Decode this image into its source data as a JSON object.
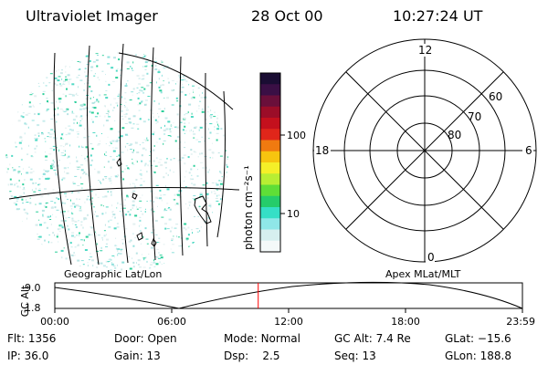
{
  "header": {
    "instrument": "Ultraviolet Imager",
    "date": "28 Oct 00",
    "time": "10:27:24 UT"
  },
  "colorbar": {
    "unit_label": "photon cm⁻²s⁻¹",
    "tick_labels": [
      "100",
      "10"
    ],
    "colors_top_to_bottom": [
      "#1a0d33",
      "#3a0f45",
      "#6a0f3a",
      "#9b0d28",
      "#c4101d",
      "#e0261a",
      "#f07a10",
      "#f7c40f",
      "#f5ef28",
      "#b8ee33",
      "#5fde37",
      "#25cc6a",
      "#35dfc6",
      "#8fe7e8",
      "#d6efef",
      "#f4f9f9"
    ]
  },
  "polar_grid": {
    "mlt_labels": {
      "top": "12",
      "left": "18",
      "right": "6",
      "bottom": "0"
    },
    "mlat_labels": [
      "60",
      "70",
      "80"
    ]
  },
  "timeline": {
    "ylabel": "GC Alt",
    "yticks": [
      "9.0",
      "1.8"
    ],
    "left_caption": "Geographic Lat/Lon",
    "right_caption": "Apex MLat/MLT",
    "xticks": [
      "00:00",
      "06:00",
      "12:00",
      "18:00",
      "23:59"
    ],
    "current_time_fraction": 0.435,
    "marker_color": "#ff0000"
  },
  "info": {
    "row1": [
      {
        "label": "Flt:",
        "value": "1356"
      },
      {
        "label": "Door:",
        "value": "Open"
      },
      {
        "label": "Mode:",
        "value": "Normal"
      },
      {
        "label": "GC Alt:",
        "value": "7.4 Re"
      },
      {
        "label": "GLat:",
        "value": "−15.6"
      }
    ],
    "row2": [
      {
        "label": "IP:",
        "value": "36.0"
      },
      {
        "label": "Gain:",
        "value": "13"
      },
      {
        "label": "Dsp:",
        "value": "2.5"
      },
      {
        "label": "Seq:",
        "value": "13"
      },
      {
        "label": "GLon:",
        "value": "188.8"
      }
    ]
  }
}
